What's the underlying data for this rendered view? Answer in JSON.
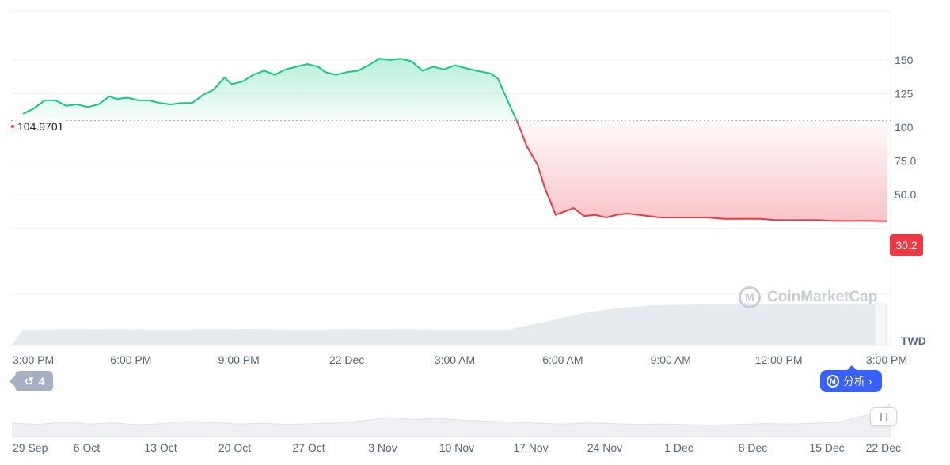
{
  "chart_data": {
    "type": "area",
    "currency": "TWD",
    "baseline_value": 104.9701,
    "baseline_label": "104.9701",
    "current_value": 30.2,
    "current_label": "30.2",
    "yticks": [
      {
        "value": 150,
        "label": "150"
      },
      {
        "value": 125,
        "label": "125"
      },
      {
        "value": 100,
        "label": "100"
      },
      {
        "value": 75,
        "label": "75.0"
      },
      {
        "value": 50,
        "label": "50.0"
      }
    ],
    "ylim": [
      -24,
      184
    ],
    "xticks": [
      "3:00 PM",
      "6:00 PM",
      "9:00 PM",
      "22 Dec",
      "3:00 AM",
      "6:00 AM",
      "9:00 AM",
      "12:00 PM",
      "3:00 PM"
    ],
    "hours": [
      0,
      3,
      6,
      9,
      12,
      15,
      18,
      21,
      24
    ],
    "price_series": [
      [
        0,
        110
      ],
      [
        0.3,
        114
      ],
      [
        0.6,
        120
      ],
      [
        0.9,
        120
      ],
      [
        1.2,
        116
      ],
      [
        1.5,
        117
      ],
      [
        1.8,
        115
      ],
      [
        2.1,
        117
      ],
      [
        2.4,
        123
      ],
      [
        2.6,
        121
      ],
      [
        2.9,
        122
      ],
      [
        3.2,
        120
      ],
      [
        3.5,
        120
      ],
      [
        3.8,
        118
      ],
      [
        4.1,
        117
      ],
      [
        4.4,
        118
      ],
      [
        4.7,
        118
      ],
      [
        5.0,
        124
      ],
      [
        5.3,
        128
      ],
      [
        5.6,
        137
      ],
      [
        5.8,
        132
      ],
      [
        6.1,
        134
      ],
      [
        6.4,
        139
      ],
      [
        6.7,
        142
      ],
      [
        7.0,
        139
      ],
      [
        7.3,
        143
      ],
      [
        7.6,
        145
      ],
      [
        7.9,
        147
      ],
      [
        8.2,
        145
      ],
      [
        8.4,
        141
      ],
      [
        8.7,
        139
      ],
      [
        9.0,
        141
      ],
      [
        9.3,
        142
      ],
      [
        9.6,
        146
      ],
      [
        9.9,
        151
      ],
      [
        10.2,
        150
      ],
      [
        10.5,
        151
      ],
      [
        10.8,
        149
      ],
      [
        11.1,
        142
      ],
      [
        11.4,
        145
      ],
      [
        11.7,
        143
      ],
      [
        12.0,
        146
      ],
      [
        12.3,
        144
      ],
      [
        12.6,
        142
      ],
      [
        13.0,
        140
      ],
      [
        13.2,
        136
      ],
      [
        13.4,
        124
      ],
      [
        13.6,
        112
      ],
      [
        13.8,
        100
      ],
      [
        14.0,
        86
      ],
      [
        14.3,
        72
      ],
      [
        14.5,
        55
      ],
      [
        14.7,
        42
      ],
      [
        14.8,
        35
      ],
      [
        15.0,
        37
      ],
      [
        15.3,
        40
      ],
      [
        15.6,
        34
      ],
      [
        15.9,
        35
      ],
      [
        16.2,
        33
      ],
      [
        16.5,
        35
      ],
      [
        16.8,
        36
      ],
      [
        17.1,
        35
      ],
      [
        17.4,
        34
      ],
      [
        17.7,
        33
      ],
      [
        18.0,
        33
      ],
      [
        18.5,
        33
      ],
      [
        19.0,
        33
      ],
      [
        19.5,
        32
      ],
      [
        20.0,
        32
      ],
      [
        20.5,
        32
      ],
      [
        20.9,
        31
      ],
      [
        21.3,
        31
      ],
      [
        21.7,
        31
      ],
      [
        22.1,
        31
      ],
      [
        22.5,
        30.5
      ],
      [
        23.0,
        30.5
      ],
      [
        23.5,
        30.5
      ],
      [
        24.0,
        30.2
      ]
    ],
    "volume_series": [
      [
        0,
        0.3
      ],
      [
        2,
        0.31
      ],
      [
        4,
        0.3
      ],
      [
        6,
        0.31
      ],
      [
        8,
        0.3
      ],
      [
        10,
        0.31
      ],
      [
        12,
        0.3
      ],
      [
        13.5,
        0.3
      ],
      [
        14.5,
        0.45
      ],
      [
        15.5,
        0.62
      ],
      [
        16.5,
        0.72
      ],
      [
        17.5,
        0.78
      ],
      [
        19,
        0.8
      ],
      [
        21,
        0.81
      ],
      [
        22.5,
        0.81
      ],
      [
        24,
        0.8
      ]
    ],
    "navigator": {
      "labels": [
        "29 Sep",
        "6 Oct",
        "13 Oct",
        "20 Oct",
        "27 Oct",
        "3 Nov",
        "10 Nov",
        "17 Nov",
        "24 Nov",
        "1 Dec",
        "8 Dec",
        "15 Dec",
        "22 Dec"
      ],
      "series": [
        0.35,
        0.32,
        0.38,
        0.33,
        0.36,
        0.31,
        0.34,
        0.4,
        0.37,
        0.33,
        0.35,
        0.32,
        0.34,
        0.36,
        0.42,
        0.5,
        0.45,
        0.48,
        0.43,
        0.4,
        0.38,
        0.35,
        0.33,
        0.36,
        0.34,
        0.32,
        0.33,
        0.31,
        0.3,
        0.32,
        0.34,
        0.33,
        0.35,
        0.38,
        0.55,
        0.85
      ]
    },
    "colors": {
      "up": "#16c784",
      "down": "#ea3943",
      "grid": "#eff2f5",
      "volume": "#e6e9ee"
    }
  },
  "ui": {
    "watermark": "CoinMarketCap",
    "history_count": "4",
    "analyze_label": "分析 ›",
    "currency_label": "TWD"
  }
}
